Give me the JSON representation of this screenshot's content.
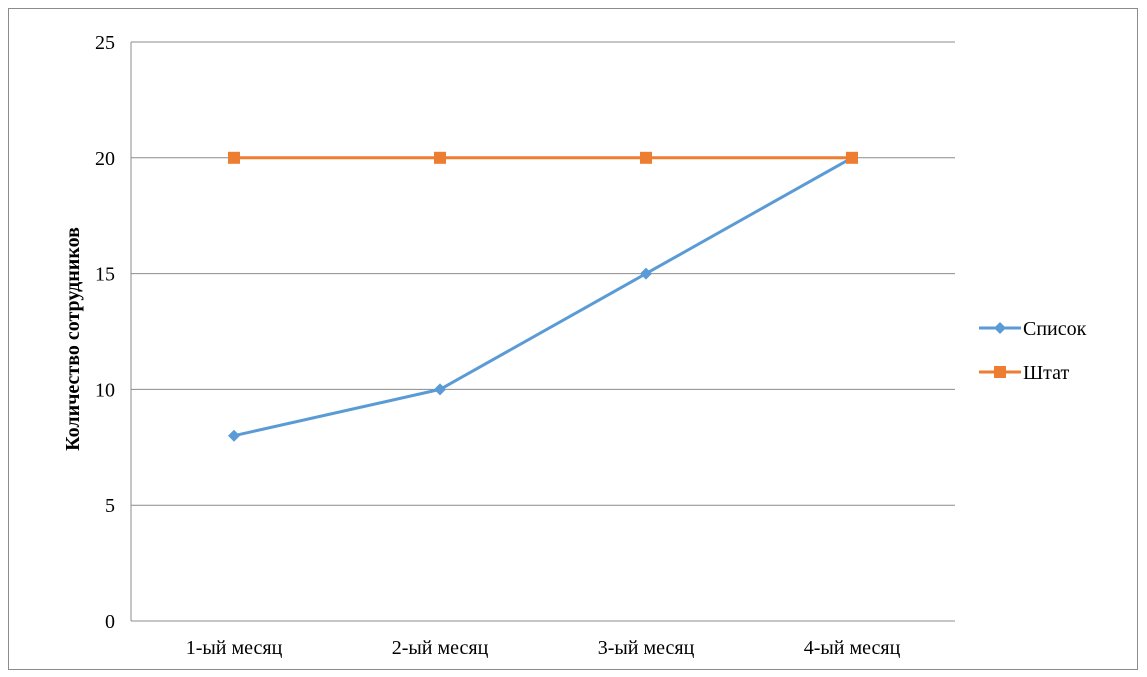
{
  "chart_data": {
    "type": "line",
    "title": "",
    "xlabel": "",
    "ylabel": "Количество сотрудников",
    "categories": [
      "1-ый месяц",
      "2-ый месяц",
      "3-ый месяц",
      "4-ый месяц"
    ],
    "ylim": [
      0,
      25
    ],
    "yticks": [
      0,
      5,
      10,
      15,
      20,
      25
    ],
    "grid": "horizontal",
    "legend_position": "right",
    "series": [
      {
        "name": "Список",
        "values": [
          8,
          10,
          15,
          20
        ],
        "color": "#5B9BD5",
        "marker": "diamond"
      },
      {
        "name": "Штат",
        "values": [
          20,
          20,
          20,
          20
        ],
        "color": "#ED7D31",
        "marker": "square"
      }
    ]
  }
}
